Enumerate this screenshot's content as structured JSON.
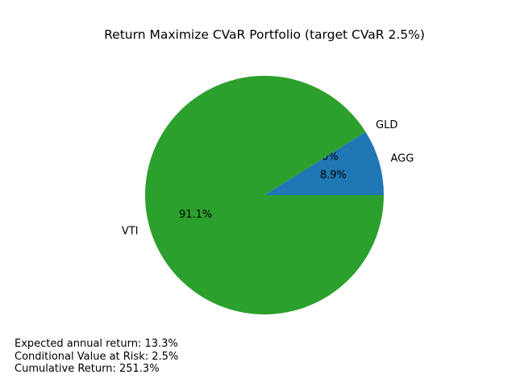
{
  "chart_data": {
    "type": "pie",
    "title": "Return Maximize CVaR Portfolio (target CVaR 2.5%)",
    "slices": [
      {
        "label": "AGG",
        "value": 8.9,
        "pct_label": "8.9%",
        "color": "#1f77b4"
      },
      {
        "label": "GLD",
        "value": 0.0,
        "pct_label": "0.0%",
        "color": "#ff7f0e"
      },
      {
        "label": "VTI",
        "value": 91.1,
        "pct_label": "91.1%",
        "color": "#2ca02c"
      }
    ],
    "start_angle_deg": 0,
    "direction": "counterclockwise"
  },
  "stats": {
    "expected_return": "Expected annual return: 13.3%",
    "cvar": "Conditional Value at Risk: 2.5%",
    "cumulative_return": "Cumulative Return: 251.3%"
  }
}
